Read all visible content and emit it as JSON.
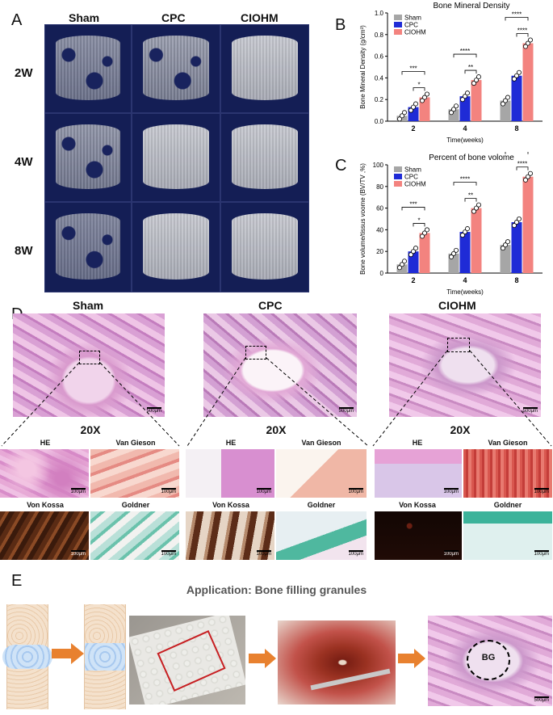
{
  "panels": {
    "a": "A",
    "b": "B",
    "c": "C",
    "d": "D",
    "e": "E"
  },
  "ct": {
    "columns": [
      "Sham",
      "CPC",
      "CIOHM"
    ],
    "rows": [
      "2W",
      "4W",
      "8W"
    ]
  },
  "chartB": {
    "title": "Bone Mineral Density",
    "ylabel": "Bone Mineral Density (g/cm³)",
    "xlabel": "Time(weeks)",
    "yticks": [
      "0.0",
      "0.2",
      "0.4",
      "0.6",
      "0.8",
      "1.0"
    ]
  },
  "chartC": {
    "title": "Percent of bone volome",
    "ylabel": "Bone volume/tissus voome (BV/TV ,%)",
    "xlabel": "Time(weeks)",
    "yticks": [
      "0",
      "20",
      "40",
      "60",
      "80",
      "100"
    ]
  },
  "legend": [
    "Sham",
    "CPC",
    "CIOHM"
  ],
  "colors": {
    "sham": "#a6a6a6",
    "cpc": "#1f2bd6",
    "ciohm": "#f3837f",
    "ct_bg": "#141e55",
    "accent_orange": "#e8812f",
    "box_red": "#c71f22"
  },
  "chart_data": [
    {
      "type": "bar",
      "title": "Bone Mineral Density",
      "xlabel": "Time(weeks)",
      "ylabel": "Bone Mineral Density (g/cm³)",
      "categories": [
        "2",
        "4",
        "8"
      ],
      "ylim": [
        0,
        1.0
      ],
      "series": [
        {
          "name": "Sham",
          "values": [
            0.05,
            0.11,
            0.19
          ]
        },
        {
          "name": "CPC",
          "values": [
            0.13,
            0.23,
            0.42
          ]
        },
        {
          "name": "CIOHM",
          "values": [
            0.22,
            0.38,
            0.72
          ]
        }
      ],
      "significance": [
        {
          "group": "2",
          "pairs": [
            [
              "Sham",
              "CIOHM",
              "***"
            ],
            [
              "CPC",
              "CIOHM",
              "*"
            ]
          ]
        },
        {
          "group": "4",
          "pairs": [
            [
              "Sham",
              "CIOHM",
              "****"
            ],
            [
              "CPC",
              "CIOHM",
              "**"
            ]
          ]
        },
        {
          "group": "8",
          "pairs": [
            [
              "Sham",
              "CIOHM",
              "****"
            ],
            [
              "CPC",
              "CIOHM",
              "****"
            ]
          ]
        }
      ],
      "legend": "top-left"
    },
    {
      "type": "bar",
      "title": "Percent of bone volome",
      "xlabel": "Time(weeks)",
      "ylabel": "Bone volume/tissus voome (BV/TV ,%)",
      "categories": [
        "2",
        "4",
        "8"
      ],
      "ylim": [
        0,
        100
      ],
      "series": [
        {
          "name": "Sham",
          "values": [
            8,
            18,
            26
          ]
        },
        {
          "name": "CPC",
          "values": [
            20,
            38,
            47
          ]
        },
        {
          "name": "CIOHM",
          "values": [
            37,
            60,
            89
          ]
        }
      ],
      "significance": [
        {
          "group": "2",
          "pairs": [
            [
              "Sham",
              "CIOHM",
              "***"
            ],
            [
              "CPC",
              "CIOHM",
              "*"
            ]
          ]
        },
        {
          "group": "4",
          "pairs": [
            [
              "Sham",
              "CIOHM",
              "****"
            ],
            [
              "CPC",
              "CIOHM",
              "**"
            ]
          ]
        },
        {
          "group": "8",
          "pairs": [
            [
              "Sham",
              "CIOHM",
              "****"
            ],
            [
              "CPC",
              "CIOHM",
              "****"
            ]
          ]
        }
      ],
      "legend": "top-left"
    }
  ],
  "histology": {
    "groups": [
      "Sham",
      "CPC",
      "CIOHM"
    ],
    "zoom": "20X",
    "stains": [
      "HE",
      "Van Gieson",
      "Von Kossa",
      "Goldner"
    ],
    "scale_large": "500μm",
    "scale_small": "100μm"
  },
  "application": {
    "title": "Application: Bone filling granules",
    "bg_label": "BG",
    "scale": "500μm"
  }
}
